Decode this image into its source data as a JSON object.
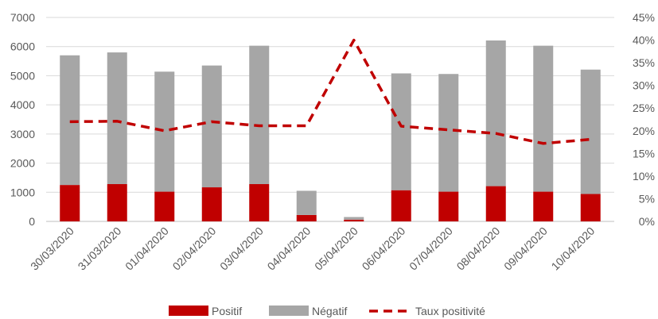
{
  "chart_data": {
    "type": "bar",
    "stacked": true,
    "categories": [
      "30/03/2020",
      "31/03/2020",
      "01/04/2020",
      "02/04/2020",
      "03/04/2020",
      "04/04/2020",
      "05/04/2020",
      "06/04/2020",
      "07/04/2020",
      "08/04/2020",
      "09/04/2020",
      "10/04/2020"
    ],
    "series": [
      {
        "name": "Positif",
        "type": "bar",
        "axis": "left",
        "color": "#c00000",
        "values": [
          1250,
          1280,
          1020,
          1170,
          1280,
          220,
          60,
          1070,
          1020,
          1210,
          1020,
          940
        ]
      },
      {
        "name": "Négatif",
        "type": "bar",
        "axis": "left",
        "color": "#a6a6a6",
        "values": [
          4450,
          4520,
          4120,
          4180,
          4750,
          830,
          90,
          4010,
          4040,
          5000,
          5010,
          4270
        ]
      },
      {
        "name": "Taux positivité",
        "type": "line",
        "axis": "right",
        "color": "#c00000",
        "dashed": true,
        "values": [
          22.0,
          22.1,
          20.0,
          22.0,
          21.1,
          21.1,
          40.0,
          21.0,
          20.2,
          19.4,
          17.2,
          18.1
        ]
      }
    ],
    "y_left": {
      "min": 0,
      "max": 7000,
      "ticks": [
        0,
        1000,
        2000,
        3000,
        4000,
        5000,
        6000,
        7000
      ]
    },
    "y_right": {
      "min": 0,
      "max": 45,
      "ticks": [
        0,
        5,
        10,
        15,
        20,
        25,
        30,
        35,
        40,
        45
      ],
      "suffix": "%"
    },
    "grid": true,
    "legend_position": "bottom"
  }
}
